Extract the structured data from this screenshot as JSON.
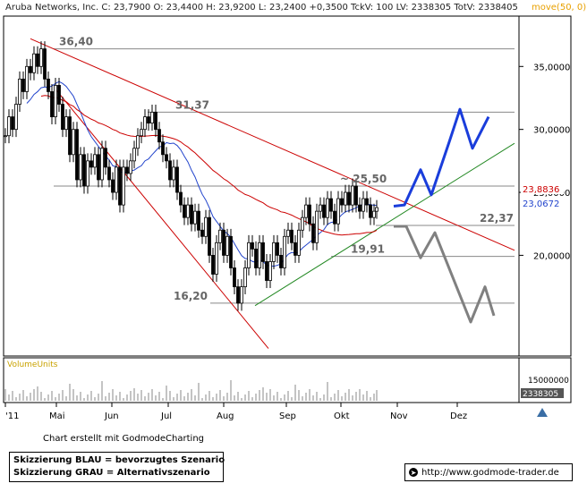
{
  "header": {
    "text": "Aruba Networks, Inc.  C: 23,7900  O: 23,4400  H: 23,9200  L: 23,2400  +0,3500  TckV: 100  LV: 2338305  TotV: 2338405",
    "indicator": "move(50, 0) m"
  },
  "chart_data": {
    "type": "candlestick",
    "x_tick_labels": [
      "'11",
      "Mai",
      "Jun",
      "Jul",
      "Aug",
      "Sep",
      "Okt",
      "Nov",
      "Dez"
    ],
    "y_tick_labels": [
      "35,0000",
      "30,0000",
      "25,0000",
      "20,0000"
    ],
    "y_ticks": [
      35,
      30,
      25,
      20
    ],
    "ylim": [
      12.0,
      39.0
    ],
    "last_price_labels": [
      {
        "text": "23,8836",
        "color": "#cc0000"
      },
      {
        "text": "23,0672",
        "color": "#2244cc"
      }
    ],
    "level_annotations": [
      "36,40",
      "31,37",
      "~ 25,50",
      "22,37",
      "19,91",
      "16,20"
    ],
    "levels": [
      36.4,
      31.37,
      25.5,
      22.37,
      19.91,
      16.2
    ],
    "volume_panel": {
      "label": "VolumeUnits",
      "y_tick_labels": [
        "15000000",
        "2338305"
      ],
      "last_volume": 2338305
    },
    "price_path": [
      [
        0,
        29.5
      ],
      [
        4,
        31
      ],
      [
        8,
        30
      ],
      [
        12,
        32
      ],
      [
        16,
        34
      ],
      [
        20,
        33
      ],
      [
        24,
        35
      ],
      [
        28,
        34.5
      ],
      [
        32,
        36
      ],
      [
        36,
        35
      ],
      [
        40,
        36.4
      ],
      [
        44,
        34
      ],
      [
        48,
        33
      ],
      [
        52,
        31
      ],
      [
        56,
        33.5
      ],
      [
        60,
        32
      ],
      [
        64,
        30
      ],
      [
        68,
        31
      ],
      [
        72,
        28
      ],
      [
        76,
        30
      ],
      [
        80,
        26
      ],
      [
        84,
        28
      ],
      [
        88,
        25.5
      ],
      [
        92,
        27.5
      ],
      [
        96,
        27
      ],
      [
        100,
        28
      ],
      [
        104,
        26
      ],
      [
        108,
        28.5
      ],
      [
        112,
        27
      ],
      [
        116,
        26
      ],
      [
        120,
        25
      ],
      [
        124,
        27
      ],
      [
        128,
        24
      ],
      [
        132,
        27
      ],
      [
        136,
        26.5
      ],
      [
        140,
        27.5
      ],
      [
        144,
        28.5
      ],
      [
        148,
        29.5
      ],
      [
        152,
        30
      ],
      [
        156,
        31
      ],
      [
        160,
        30.5
      ],
      [
        164,
        31.37
      ],
      [
        168,
        30
      ],
      [
        172,
        29
      ],
      [
        176,
        28
      ],
      [
        180,
        27.5
      ],
      [
        184,
        26
      ],
      [
        188,
        27
      ],
      [
        192,
        25
      ],
      [
        196,
        24
      ],
      [
        200,
        23
      ],
      [
        204,
        24
      ],
      [
        208,
        22.5
      ],
      [
        212,
        23.5
      ],
      [
        216,
        22
      ],
      [
        220,
        21.5
      ],
      [
        224,
        23
      ],
      [
        228,
        20
      ],
      [
        232,
        18.5
      ],
      [
        236,
        21
      ],
      [
        240,
        22
      ],
      [
        244,
        20
      ],
      [
        248,
        21.5
      ],
      [
        252,
        19
      ],
      [
        256,
        17.5
      ],
      [
        260,
        16.2
      ],
      [
        264,
        17.5
      ],
      [
        268,
        19
      ],
      [
        272,
        21
      ],
      [
        276,
        20.5
      ],
      [
        280,
        19
      ],
      [
        284,
        21
      ],
      [
        288,
        19.5
      ],
      [
        292,
        18
      ],
      [
        296,
        19.5
      ],
      [
        300,
        21
      ],
      [
        304,
        20
      ],
      [
        308,
        19
      ],
      [
        312,
        21.5
      ],
      [
        316,
        22
      ],
      [
        320,
        21
      ],
      [
        324,
        20
      ],
      [
        328,
        22
      ],
      [
        332,
        23
      ],
      [
        336,
        24
      ],
      [
        340,
        22.5
      ],
      [
        344,
        21
      ],
      [
        348,
        23.5
      ],
      [
        352,
        24
      ],
      [
        356,
        23
      ],
      [
        360,
        24.5
      ],
      [
        364,
        23.5
      ],
      [
        368,
        22.5
      ],
      [
        372,
        24.5
      ],
      [
        376,
        24
      ],
      [
        380,
        25
      ],
      [
        384,
        24
      ],
      [
        388,
        25.5
      ],
      [
        392,
        24
      ],
      [
        396,
        23.5
      ],
      [
        400,
        24.5
      ],
      [
        404,
        24
      ],
      [
        408,
        23
      ],
      [
        412,
        23.5
      ],
      [
        415,
        23.79
      ]
    ],
    "scenario_blue": [
      [
        440,
        23.9
      ],
      [
        452,
        24
      ],
      [
        470,
        26.8
      ],
      [
        482,
        24.8
      ],
      [
        502,
        29
      ],
      [
        514,
        31.6
      ],
      [
        528,
        28.5
      ],
      [
        546,
        31
      ]
    ],
    "scenario_grey": [
      [
        440,
        22.3
      ],
      [
        454,
        22.3
      ],
      [
        470,
        19.8
      ],
      [
        486,
        21.8
      ],
      [
        526,
        14.7
      ],
      [
        542,
        17.5
      ],
      [
        552,
        15.2
      ]
    ]
  },
  "footer": {
    "credit": "Chart erstellt mit GodmodeCharting",
    "legend_blue": "Skizzierung BLAU = bevorzugtes Szenario",
    "legend_grey": "Skizzierung GRAU = Alternativszenario",
    "url": "http://www.godmode-trader.de",
    "cursor_icon": "cursor-icon"
  }
}
